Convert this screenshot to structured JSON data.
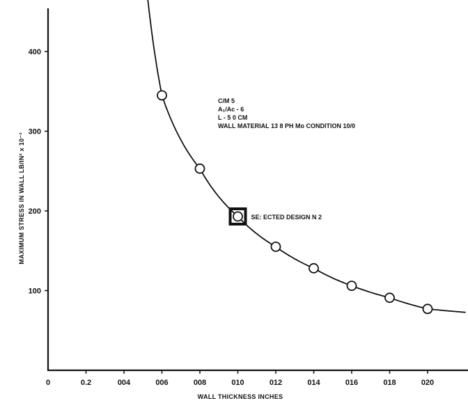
{
  "chart_data": {
    "type": "line",
    "title": "",
    "xlabel": "WALL THICKNESS   INCHES",
    "ylabel": "MAXIMUM STRESS IN WALL   LB/IN² x 10⁻³",
    "xlim": [
      0,
      0.022
    ],
    "ylim": [
      0,
      450
    ],
    "x_tick_labels": [
      "0",
      "0.2",
      "004",
      "006",
      "008",
      "010",
      "012",
      "014",
      "016",
      "018",
      "020"
    ],
    "y_tick_labels": [
      "100",
      "200",
      "300",
      "400"
    ],
    "series": [
      {
        "points": [
          {
            "x": 0.006,
            "y": 345
          },
          {
            "x": 0.008,
            "y": 253
          },
          {
            "x": 0.01,
            "y": 193
          },
          {
            "x": 0.012,
            "y": 155
          },
          {
            "x": 0.014,
            "y": 128
          },
          {
            "x": 0.016,
            "y": 106
          },
          {
            "x": 0.018,
            "y": 91
          },
          {
            "x": 0.02,
            "y": 77
          }
        ]
      }
    ],
    "curve_range": [
      0.0047,
      0.022
    ],
    "annotation_lines": [
      "C/M   5",
      "A₁/Aᴄ - 6",
      "L - 5 0 CM",
      "WALL MATERIAL   13  8 PH Mo CONDITION 10/0"
    ],
    "selected": {
      "x": 0.01,
      "y": 193,
      "label": "SE: ECTED DESIGN N 2"
    },
    "grid": false,
    "legend": "none"
  }
}
